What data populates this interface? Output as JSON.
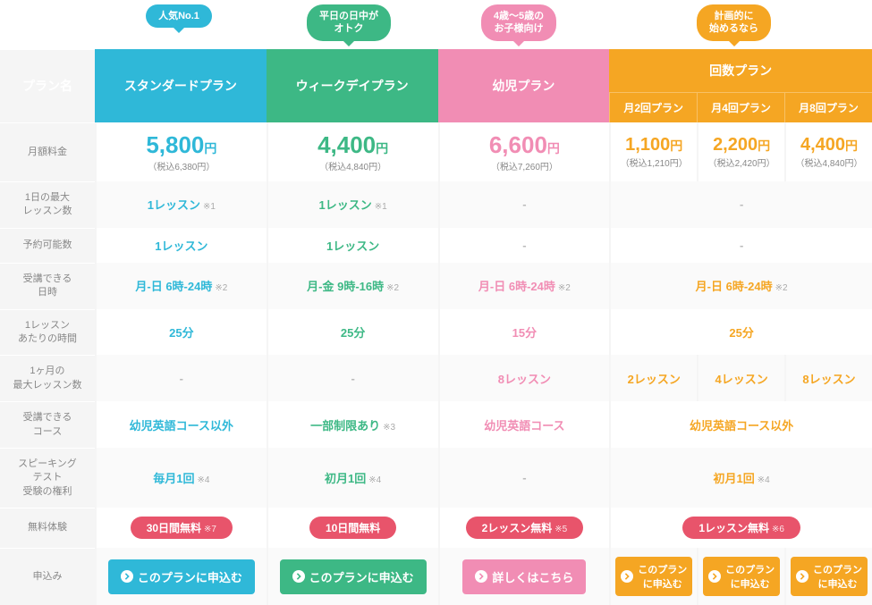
{
  "labels": {
    "planName": "プラン名",
    "monthlyFee": "月額料金",
    "maxPerDay": "1日の最大\nレッスン数",
    "reservable": "予約可能数",
    "hours": "受講できる\n日時",
    "perLesson": "1レッスン\nあたりの時間",
    "maxPerMonth": "1ヶ月の\n最大レッスン数",
    "courses": "受講できる\nコース",
    "speaking": "スピーキング\nテスト\n受験の権利",
    "trial": "無料体験",
    "apply": "申込み"
  },
  "headers": {
    "std": "スタンダードプラン",
    "wk": "ウィークデイプラン",
    "kid": "幼児プラン",
    "cnt": "回数プラン",
    "m2": "月2回プラン",
    "m4": "月4回プラン",
    "m8": "月8回プラン"
  },
  "badges": {
    "std": "人気No.1",
    "wk": "平日の日中が\nオトク",
    "kid": "4歳～5歳の\nお子様向け",
    "cnt": "計画的に\n始めるなら"
  },
  "prices": {
    "std": {
      "p": "5,800",
      "t": "（税込6,380円）"
    },
    "wk": {
      "p": "4,400",
      "t": "（税込4,840円）"
    },
    "kid": {
      "p": "6,600",
      "t": "（税込7,260円）"
    },
    "m2": {
      "p": "1,100",
      "t": "（税込1,210円）"
    },
    "m4": {
      "p": "2,200",
      "t": "（税込2,420円）"
    },
    "m8": {
      "p": "4,400",
      "t": "（税込4,840円）"
    }
  },
  "yen": "円",
  "rows": {
    "maxPerDay": {
      "std": "1レッスン",
      "stdN": "※1",
      "wk": "1レッスン",
      "wkN": "※1",
      "kid": "-",
      "cnt": "-"
    },
    "reservable": {
      "std": "1レッスン",
      "wk": "1レッスン",
      "kid": "-",
      "cnt": "-"
    },
    "hours": {
      "std": "月-日 6時-24時",
      "stdN": "※2",
      "wk": "月-金 9時-16時",
      "wkN": "※2",
      "kid": "月-日 6時-24時",
      "kidN": "※2",
      "cnt": "月-日 6時-24時",
      "cntN": "※2"
    },
    "perLesson": {
      "std": "25分",
      "wk": "25分",
      "kid": "15分",
      "cnt": "25分"
    },
    "maxPerMonth": {
      "std": "-",
      "wk": "-",
      "kid": "8レッスン",
      "m2": "2レッスン",
      "m4": "4レッスン",
      "m8": "8レッスン"
    },
    "courses": {
      "std": "幼児英語コース以外",
      "wk": "一部制限あり",
      "wkN": "※3",
      "kid": "幼児英語コース",
      "cnt": "幼児英語コース以外"
    },
    "speaking": {
      "std": "毎月1回",
      "stdN": "※4",
      "wk": "初月1回",
      "wkN": "※4",
      "kid": "-",
      "cnt": "初月1回",
      "cntN": "※4"
    },
    "trial": {
      "std": "30日間無料",
      "stdN": "※7",
      "wk": "10日間無料",
      "kid": "2レッスン無料",
      "kidN": "※5",
      "cnt": "1レッスン無料",
      "cntN": "※6"
    }
  },
  "buttons": {
    "apply": "このプランに申込む",
    "applyShort": "このプラン\nに申込む",
    "detail": "詳しくはこちら"
  }
}
